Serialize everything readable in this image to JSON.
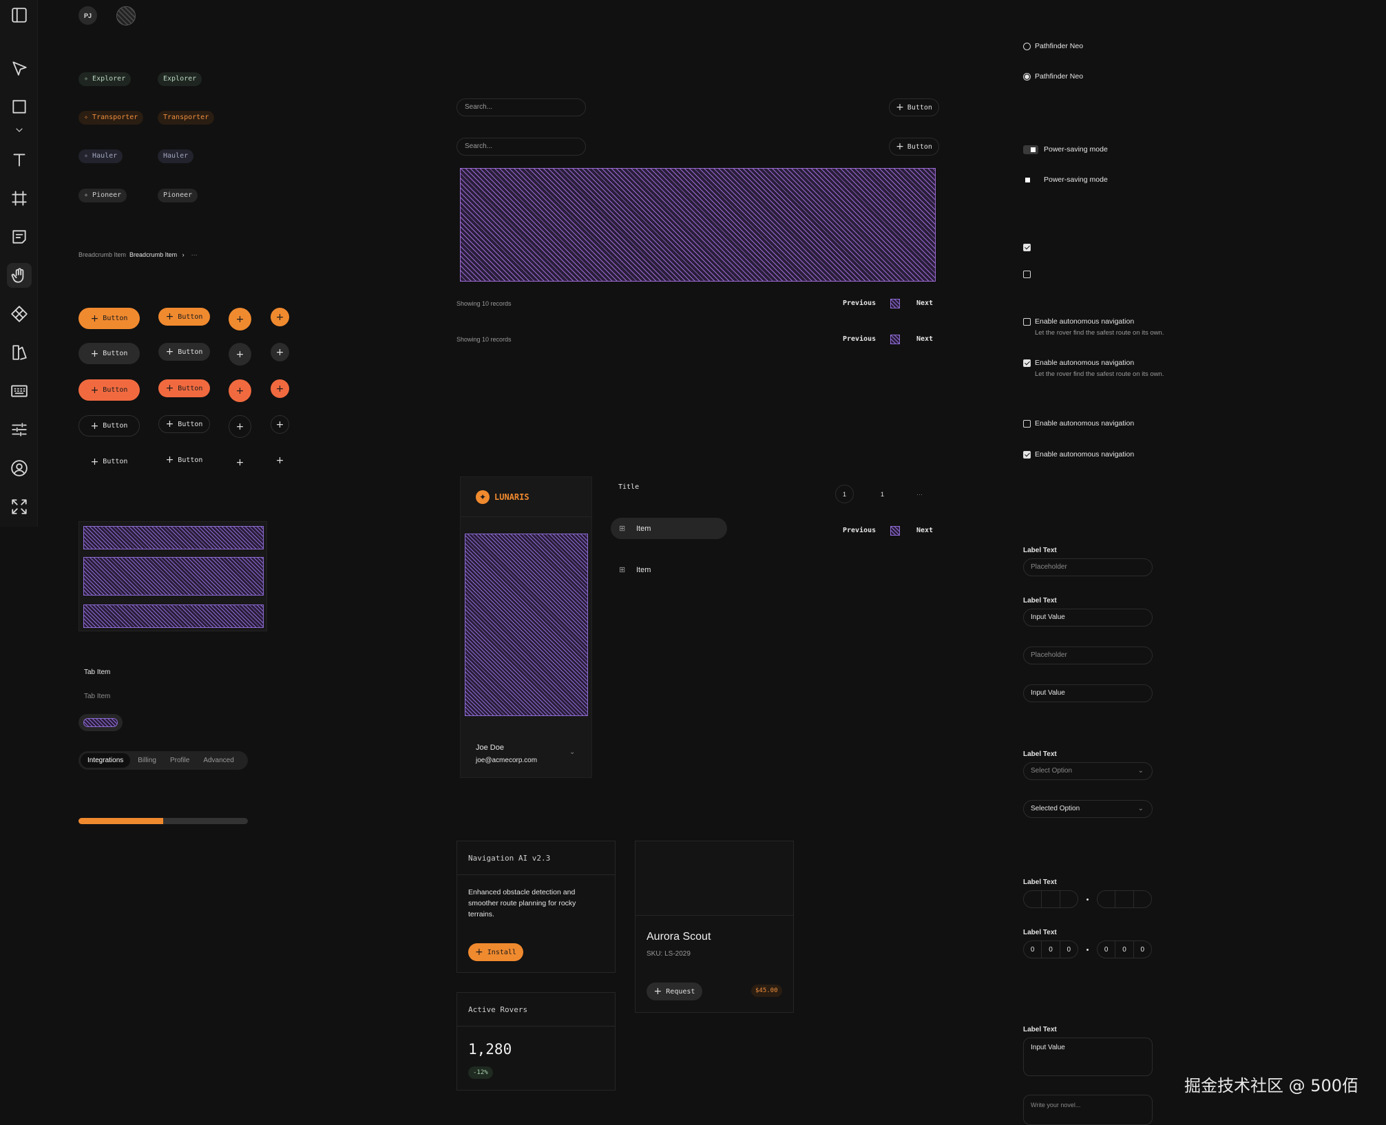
{
  "toolbar": {
    "tools": [
      "sidebar-toggle-icon",
      "pointer-icon",
      "rectangle-icon",
      "chevron-down-icon",
      "text-icon",
      "frame-icon",
      "note-icon",
      "hand-icon",
      "component-icon",
      "assets-icon",
      "keyboard-icon",
      "sliders-icon",
      "user-icon",
      "expand-icon"
    ],
    "active": "hand-icon"
  },
  "avatars": {
    "initials": "PJ"
  },
  "chips": [
    {
      "label": "Explorer",
      "color": "#b9d7bf"
    },
    {
      "label": "Transporter",
      "color": "#ee8e3c"
    },
    {
      "label": "Hauler",
      "color": "#a4a6c0"
    },
    {
      "label": "Pioneer",
      "color": "#cfcfcf"
    }
  ],
  "breadcrumb": {
    "item1": "Breadcrumb Item",
    "item2": "Breadcrumb Item",
    "separator": "›",
    "ellipsis": "···"
  },
  "buttons": {
    "label": "Button",
    "plus": "+"
  },
  "tabs_vertical": {
    "active": "Tab Item",
    "inactive": "Tab Item"
  },
  "segmented": {
    "items": [
      "Integrations",
      "Billing",
      "Profile",
      "Advanced"
    ],
    "active": "Integrations"
  },
  "progress": {
    "value": 0.5,
    "color": "#f08a2f"
  },
  "search": {
    "placeholder": "Search...",
    "button_label": "Button"
  },
  "pagination": {
    "records": "Showing 10 records",
    "previous": "Previous",
    "next": "Next"
  },
  "sidebar_demo": {
    "brand": "LUNARIS",
    "user_name": "Joe Doe",
    "user_email": "joe@acmecorp.com"
  },
  "nav_list": {
    "title": "Title",
    "item_active": "Item",
    "item": "Item",
    "page1": "1",
    "page2": "1",
    "ellipsis": "···"
  },
  "plugin_card": {
    "title": "Navigation AI v2.3",
    "body": "Enhanced obstacle detection and smoother route planning for rocky terrains.",
    "button": "Install"
  },
  "stat_card": {
    "title": "Active Rovers",
    "value": "1,280",
    "delta": "-12%"
  },
  "product_card": {
    "name": "Aurora Scout",
    "sku": "SKU: LS-2029",
    "button": "Request",
    "price": "$45.00"
  },
  "radios": [
    {
      "label": "Pathfinder Neo",
      "checked": false
    },
    {
      "label": "Pathfinder Neo",
      "checked": true
    }
  ],
  "switches": [
    {
      "label": "Power-saving mode"
    },
    {
      "label": "Power-saving mode"
    }
  ],
  "checkbox_desc": {
    "label": "Enable autonomous navigation",
    "description": "Let the rover find the safest route on its own."
  },
  "inputs": {
    "label": "Label Text",
    "placeholder": "Placeholder",
    "value": "Input Value",
    "select_placeholder": "Select Option",
    "select_value": "Selected Option",
    "otp_value": "0",
    "textarea_placeholder": "Write your novel..."
  },
  "watermark": "掘金技术社区 @ 500佰"
}
